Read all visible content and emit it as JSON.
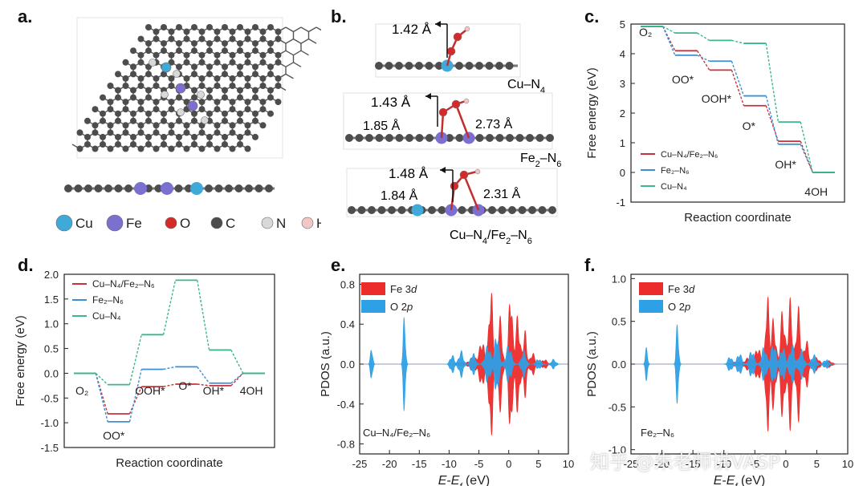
{
  "panel_letters": {
    "a": "a.",
    "b": "b.",
    "c": "c.",
    "d": "d.",
    "e": "e.",
    "f": "f."
  },
  "panel_a": {
    "atom_legend": [
      {
        "symbol": "Cu",
        "color": "#3fa9d8"
      },
      {
        "symbol": "Fe",
        "color": "#7b6fd0"
      },
      {
        "symbol": "O",
        "color": "#d42a2a"
      },
      {
        "symbol": "C",
        "color": "#4d4d4d"
      },
      {
        "symbol": "N",
        "color": "#d9d9d9"
      },
      {
        "symbol": "H",
        "color": "#f2c7c7"
      }
    ]
  },
  "panel_b": {
    "structures": [
      {
        "name_html": "Cu–N<sub>4</sub>",
        "name_text": "Cu–N4",
        "bond": "1.42 Å"
      },
      {
        "name_text": "Fe2–N6",
        "bond": "1.43 Å",
        "left_dist": "1.85 Å",
        "right_dist": "2.73 Å"
      },
      {
        "name_text": "Cu–N4/Fe2–N6",
        "bond": "1.48 Å",
        "left_dist": "1.84 Å",
        "right_dist": "2.31 Å"
      }
    ]
  },
  "chart_data": [
    {
      "panel": "c",
      "type": "line",
      "title": "",
      "xlabel": "Reaction coordinate",
      "ylabel": "Free energy (eV)",
      "ylim": [
        -1,
        5
      ],
      "yticks": [
        "-1",
        "0",
        "1",
        "2",
        "3",
        "4",
        "5"
      ],
      "steps": [
        "O2",
        "OO*",
        "OOH*",
        "O*",
        "OH*",
        "4OH"
      ],
      "step_labels": [
        "O₂",
        "OO*",
        "OOH*",
        "O*",
        "OH*",
        "4OH"
      ],
      "series": [
        {
          "name": "Cu–N₄/Fe₂–N₆",
          "color": "#c8323a",
          "values": [
            4.92,
            4.1,
            3.45,
            2.25,
            1.05,
            0.0
          ]
        },
        {
          "name": "Fe₂–N₆",
          "color": "#3a8fd6",
          "values": [
            4.92,
            3.95,
            3.75,
            2.58,
            0.95,
            0.0
          ]
        },
        {
          "name": "Cu–N₄",
          "color": "#3ab88a",
          "values": [
            4.92,
            4.7,
            4.45,
            4.35,
            1.7,
            0.0
          ]
        }
      ],
      "legend_position": "bottom-left"
    },
    {
      "panel": "d",
      "type": "line",
      "title": "",
      "xlabel": "Reaction coordinate",
      "ylabel": "Free energy (eV)",
      "ylim": [
        -1.5,
        2.0
      ],
      "yticks": [
        "-1.5",
        "-1.0",
        "-0.5",
        "0.0",
        "0.5",
        "1.0",
        "1.5",
        "2.0"
      ],
      "steps": [
        "O2",
        "OO*",
        "OOH*",
        "O*",
        "OH*",
        "4OH"
      ],
      "step_labels": [
        "O₂",
        "OO*",
        "OOH*",
        "O*",
        "OH*",
        "4OH"
      ],
      "series": [
        {
          "name": "Cu–N₄/Fe₂–N₆",
          "color": "#c8323a",
          "values": [
            0.0,
            -0.82,
            -0.27,
            -0.22,
            -0.25,
            0.0
          ]
        },
        {
          "name": "Fe₂–N₆",
          "color": "#3a8fd6",
          "values": [
            0.0,
            -0.98,
            0.08,
            0.13,
            -0.2,
            0.0
          ]
        },
        {
          "name": "Cu–N₄",
          "color": "#3ab88a",
          "values": [
            0.0,
            -0.23,
            0.78,
            1.88,
            0.47,
            0.0
          ]
        }
      ],
      "legend_position": "top-left"
    },
    {
      "panel": "e",
      "type": "area",
      "xlabel": "E-Ef (eV)",
      "ylabel": "PDOS (a.u.)",
      "xlim": [
        -25,
        10
      ],
      "ylim": [
        -0.9,
        0.9
      ],
      "xticks": [
        "-25",
        "-20",
        "-15",
        "-10",
        "-5",
        "0",
        "5",
        "10"
      ],
      "yticks": [
        "-0.8",
        "-0.4",
        "0.0",
        "0.4",
        "0.8"
      ],
      "annotation": "Cu–N₄/Fe₂–N₆",
      "series": [
        {
          "name": "Fe 3d",
          "color": "#ec2b2b",
          "peaks": [
            [
              -8,
              0.02,
              0.8
            ],
            [
              -6,
              0.07,
              0.8
            ],
            [
              -4.5,
              0.24,
              0.6
            ],
            [
              -3,
              0.82,
              0.45
            ],
            [
              -1.5,
              0.5,
              0.5
            ],
            [
              0.3,
              0.83,
              0.4
            ],
            [
              1.5,
              0.5,
              0.5
            ],
            [
              2.7,
              0.35,
              0.4
            ],
            [
              4,
              0.12,
              0.5
            ],
            [
              6,
              0.05,
              0.6
            ]
          ]
        },
        {
          "name": "O 2p",
          "color": "#2ea0e6",
          "peaks": [
            [
              -23,
              0.2,
              0.25
            ],
            [
              -17.5,
              0.56,
              0.25
            ],
            [
              -9.5,
              0.1,
              0.45
            ],
            [
              -8,
              0.14,
              0.5
            ],
            [
              -6,
              0.12,
              0.5
            ],
            [
              -3.5,
              0.2,
              0.6
            ],
            [
              -2,
              0.33,
              0.5
            ],
            [
              0,
              0.2,
              0.6
            ],
            [
              2.5,
              0.14,
              0.5
            ],
            [
              5,
              0.06,
              0.5
            ],
            [
              7.5,
              0.05,
              0.5
            ]
          ]
        }
      ]
    },
    {
      "panel": "f",
      "type": "area",
      "xlabel": "E-Ef (eV)",
      "ylabel": "PDOS (a.u.)",
      "xlim": [
        -25,
        10
      ],
      "ylim": [
        -1.05,
        1.05
      ],
      "xticks": [
        "-25",
        "-20",
        "-15",
        "-10",
        "-5",
        "0",
        "5",
        "10"
      ],
      "yticks": [
        "-1.0",
        "-0.5",
        "0.0",
        "0.5",
        "1.0"
      ],
      "annotation": "Fe₂–N₆",
      "series": [
        {
          "name": "Fe 3d",
          "color": "#ec2b2b",
          "peaks": [
            [
              -8,
              0.03,
              0.8
            ],
            [
              -6,
              0.08,
              0.8
            ],
            [
              -4.5,
              0.2,
              0.6
            ],
            [
              -3,
              0.92,
              0.35
            ],
            [
              -2,
              0.55,
              0.5
            ],
            [
              -0.5,
              0.7,
              0.45
            ],
            [
              0.7,
              0.78,
              0.45
            ],
            [
              2,
              0.7,
              0.45
            ],
            [
              3.3,
              0.3,
              0.5
            ],
            [
              5,
              0.08,
              0.6
            ],
            [
              7,
              0.04,
              0.6
            ]
          ]
        },
        {
          "name": "O 2p",
          "color": "#2ea0e6",
          "peaks": [
            [
              -22.5,
              0.2,
              0.25
            ],
            [
              -17.5,
              0.55,
              0.25
            ],
            [
              -9,
              0.1,
              0.45
            ],
            [
              -7.5,
              0.14,
              0.5
            ],
            [
              -5.5,
              0.18,
              0.5
            ],
            [
              -3.5,
              0.22,
              0.5
            ],
            [
              -2,
              0.27,
              0.5
            ],
            [
              -0.5,
              0.22,
              0.5
            ],
            [
              1,
              0.25,
              0.5
            ],
            [
              2.5,
              0.18,
              0.5
            ],
            [
              4.5,
              0.12,
              0.5
            ],
            [
              6.5,
              0.06,
              0.5
            ]
          ]
        }
      ]
    }
  ],
  "watermark": "知乎 @朱老师讲VASP"
}
